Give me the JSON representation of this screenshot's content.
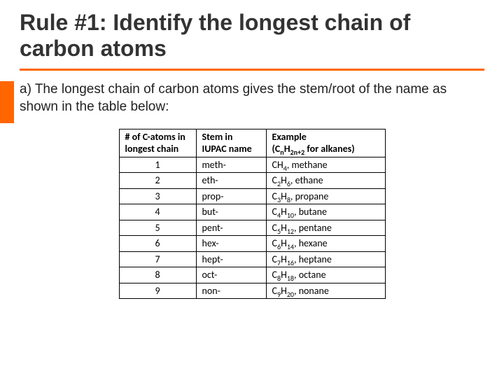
{
  "colors": {
    "accent": "#ff6600",
    "rule": "#ff6600",
    "title": "#333333",
    "body": "#222222",
    "table_border": "#000000",
    "background": "#ffffff"
  },
  "title": "Rule #1: Identify the longest chain of carbon atoms",
  "body": "a) The longest chain of carbon atoms gives the stem/root of the name as shown in the table below:",
  "table": {
    "columns": [
      {
        "lines": [
          "# of C-atoms in",
          "longest chain"
        ],
        "align": "left"
      },
      {
        "lines": [
          "Stem in",
          "IUPAC name"
        ],
        "align": "left"
      },
      {
        "lines": [
          "Example",
          "(C_{n}H_{2n+2} for alkanes)"
        ],
        "align": "left"
      }
    ],
    "rows": [
      {
        "n": "1",
        "stem": "meth-",
        "formula": "CH_{4}",
        "name": "methane"
      },
      {
        "n": "2",
        "stem": "eth-",
        "formula": "C_{2}H_{6}",
        "name": "ethane"
      },
      {
        "n": "3",
        "stem": "prop-",
        "formula": "C_{3}H_{8}",
        "name": "propane"
      },
      {
        "n": "4",
        "stem": "but-",
        "formula": "C_{4}H_{10}",
        "name": "butane"
      },
      {
        "n": "5",
        "stem": "pent-",
        "formula": "C_{5}H_{12}",
        "name": "pentane"
      },
      {
        "n": "6",
        "stem": "hex-",
        "formula": "C_{6}H_{14}",
        "name": "hexane"
      },
      {
        "n": "7",
        "stem": "hept-",
        "formula": "C_{7}H_{16}",
        "name": "heptane"
      },
      {
        "n": "8",
        "stem": "oct-",
        "formula": "C_{8}H_{18}",
        "name": "octane"
      },
      {
        "n": "9",
        "stem": "non-",
        "formula": "C_{9}H_{20}",
        "name": "nonane"
      }
    ]
  }
}
